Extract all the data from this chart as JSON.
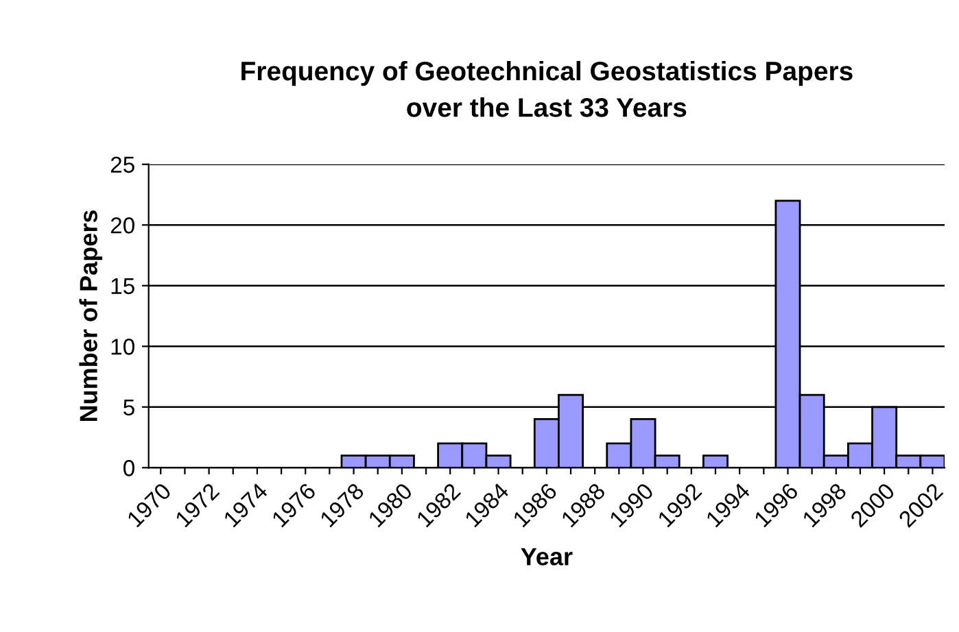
{
  "chart_data": {
    "type": "bar",
    "title": "Frequency of Geotechnical Geostatistics Papers\nover the Last 33 Years",
    "xlabel": "Year",
    "ylabel": "Number of Papers",
    "categories": [
      "1970",
      null,
      "1972",
      null,
      "1974",
      null,
      "1976",
      null,
      "1978",
      null,
      "1980",
      null,
      "1982",
      null,
      "1984",
      null,
      "1986",
      null,
      "1988",
      null,
      "1990",
      null,
      "1992",
      null,
      "1994",
      null,
      "1996",
      null,
      "1998",
      null,
      "2000",
      null,
      "2002"
    ],
    "values": [
      0,
      0,
      0,
      0,
      0,
      0,
      0,
      0,
      1,
      1,
      1,
      0,
      2,
      2,
      1,
      0,
      4,
      6,
      0,
      2,
      4,
      1,
      0,
      1,
      0,
      0,
      22,
      6,
      1,
      2,
      5,
      1,
      1
    ],
    "color": "#9999ff",
    "ylim": [
      0,
      25
    ],
    "yticks": [
      0,
      5,
      10,
      15,
      20,
      25
    ],
    "grid": "y"
  }
}
